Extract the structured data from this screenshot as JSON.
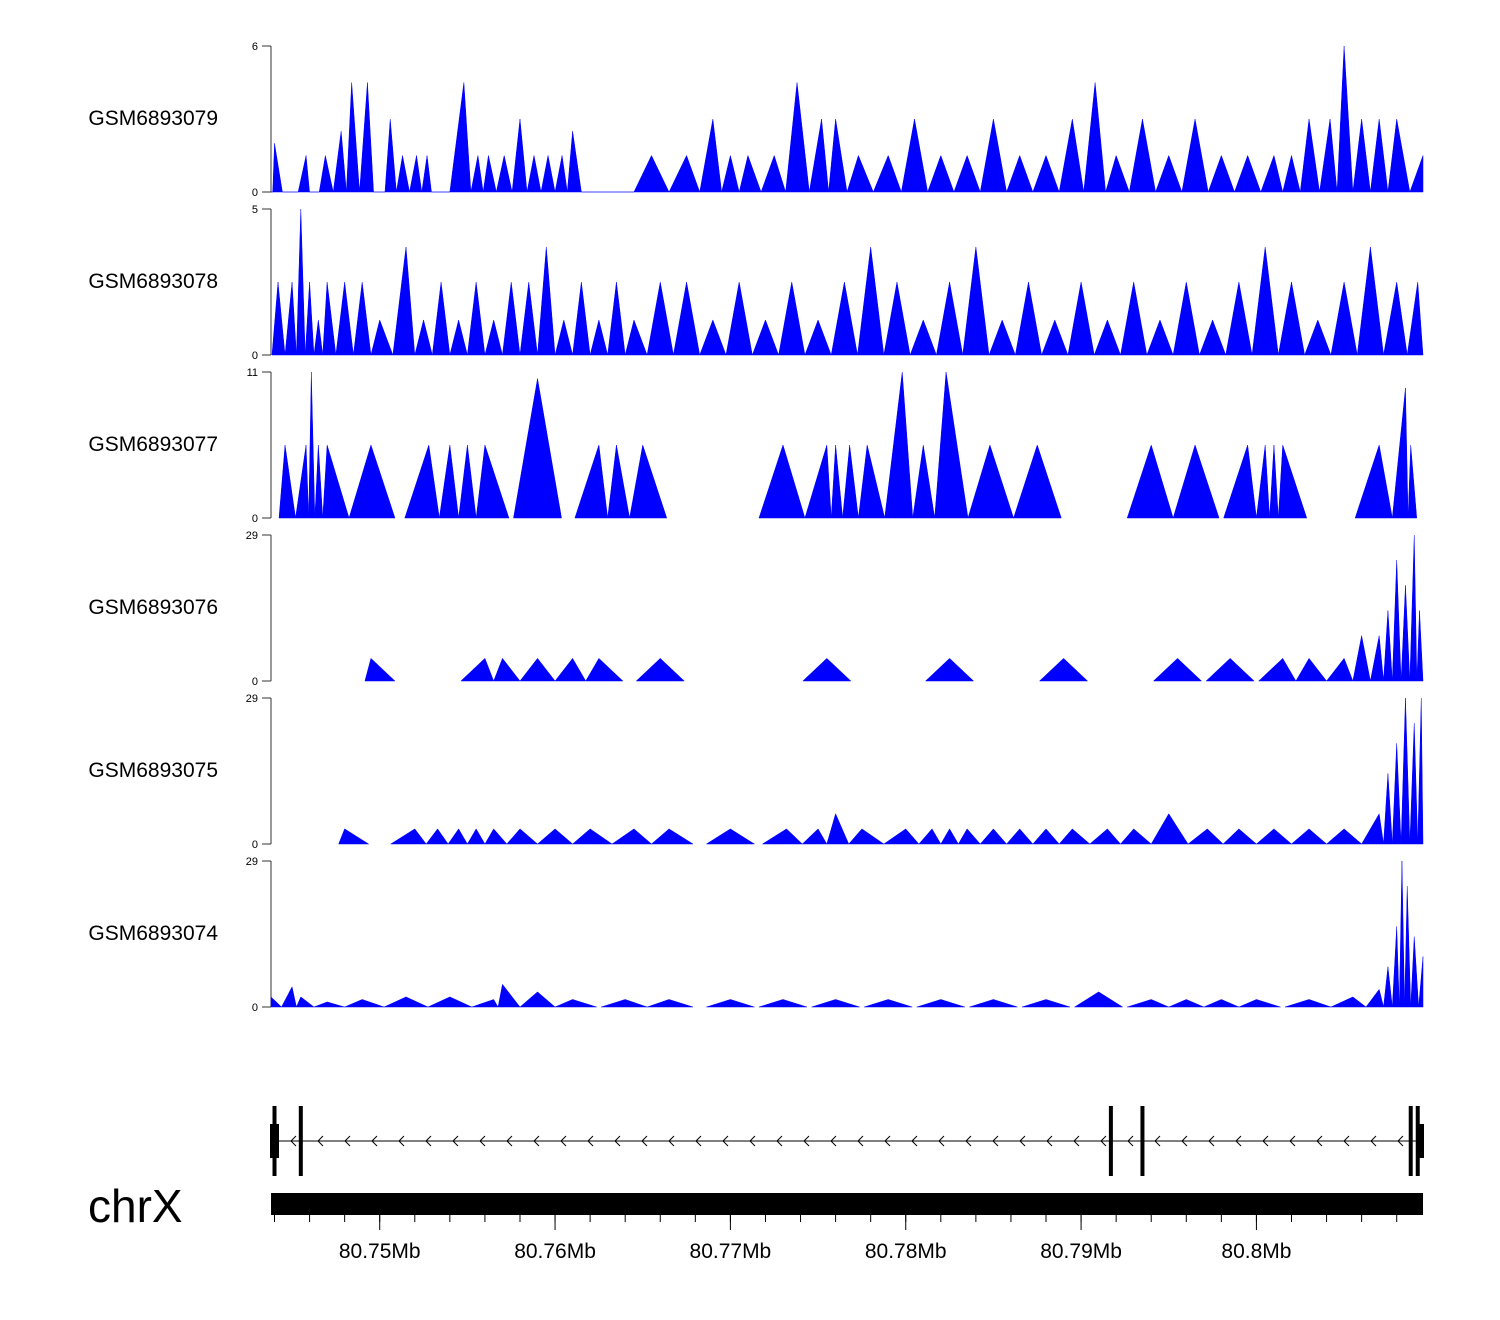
{
  "chart_data": {
    "type": "area",
    "title": "",
    "chromosome": "chrX",
    "x_unit": "Mb",
    "xlim": [
      80.7438,
      80.8095
    ],
    "x_ticks": [
      80.75,
      80.76,
      80.77,
      80.78,
      80.79,
      80.8
    ],
    "x_tick_labels": [
      "80.75Mb",
      "80.76Mb",
      "80.77Mb",
      "80.78Mb",
      "80.79Mb",
      "80.8Mb"
    ],
    "series": [
      {
        "name": "GSM6893079",
        "ylim": [
          0,
          6
        ],
        "y_ticks": [
          "0",
          "6"
        ],
        "x": [
          80.7438,
          80.744,
          80.7449,
          80.7458,
          80.7462,
          80.7469,
          80.7478,
          80.7484,
          80.7493,
          80.75,
          80.7506,
          80.7513,
          80.7521,
          80.7527,
          80.7532,
          80.7548,
          80.7556,
          80.7562,
          80.7571,
          80.758,
          80.7588,
          80.7596,
          80.7604,
          80.761,
          80.762,
          80.7635,
          80.7655,
          80.7675,
          80.769,
          80.77,
          80.771,
          80.7725,
          80.7738,
          80.7752,
          80.776,
          80.7773,
          80.779,
          80.7805,
          80.782,
          80.7835,
          80.785,
          80.7865,
          80.788,
          80.7895,
          80.7908,
          80.792,
          80.7935,
          80.795,
          80.7965,
          80.798,
          80.7995,
          80.801,
          80.802,
          80.803,
          80.8042,
          80.805,
          80.806,
          80.807,
          80.808,
          80.8095
        ],
        "y": [
          0,
          2,
          0,
          1.5,
          0,
          1.5,
          2.5,
          4.5,
          4.5,
          0,
          3,
          1.5,
          1.5,
          1.5,
          0,
          4.5,
          1.5,
          1.5,
          1.5,
          3,
          1.5,
          1.5,
          1.5,
          2.5,
          0,
          0,
          1.5,
          1.5,
          3,
          1.5,
          1.5,
          1.5,
          4.5,
          3,
          3,
          1.5,
          1.5,
          3,
          1.5,
          1.5,
          3,
          1.5,
          1.5,
          3,
          4.5,
          1.5,
          3,
          1.5,
          3,
          1.5,
          1.5,
          1.5,
          1.5,
          3,
          3,
          6,
          3,
          3,
          3,
          1.5
        ]
      },
      {
        "name": "GSM6893078",
        "ylim": [
          0,
          5
        ],
        "y_ticks": [
          "0",
          "5"
        ],
        "x": [
          80.7442,
          80.745,
          80.7455,
          80.746,
          80.7465,
          80.747,
          80.748,
          80.749,
          80.75,
          80.7515,
          80.7525,
          80.7535,
          80.7545,
          80.7555,
          80.7565,
          80.7575,
          80.7585,
          80.7595,
          80.7605,
          80.7615,
          80.7625,
          80.7635,
          80.7645,
          80.766,
          80.7675,
          80.769,
          80.7705,
          80.772,
          80.7735,
          80.775,
          80.7765,
          80.778,
          80.7795,
          80.781,
          80.7825,
          80.784,
          80.7855,
          80.787,
          80.7885,
          80.79,
          80.7915,
          80.793,
          80.7945,
          80.796,
          80.7975,
          80.799,
          80.8005,
          80.802,
          80.8035,
          80.805,
          80.8065,
          80.808,
          80.8092
        ],
        "y": [
          2.5,
          2.5,
          5,
          2.5,
          1.2,
          2.5,
          2.5,
          2.5,
          1.2,
          3.7,
          1.2,
          2.5,
          1.2,
          2.5,
          1.2,
          2.5,
          2.5,
          3.7,
          1.2,
          2.5,
          1.2,
          2.5,
          1.2,
          2.5,
          2.5,
          1.2,
          2.5,
          1.2,
          2.5,
          1.2,
          2.5,
          3.7,
          2.5,
          1.2,
          2.5,
          3.7,
          1.2,
          2.5,
          1.2,
          2.5,
          1.2,
          2.5,
          1.2,
          2.5,
          1.2,
          2.5,
          3.7,
          2.5,
          1.2,
          2.5,
          3.7,
          2.5,
          2.5
        ]
      },
      {
        "name": "GSM6893077",
        "ylim": [
          0,
          11
        ],
        "y_ticks": [
          "0",
          "11"
        ],
        "x": [
          80.7446,
          80.7458,
          80.7461,
          80.7465,
          80.747,
          80.7495,
          80.7528,
          80.754,
          80.755,
          80.756,
          80.759,
          80.7625,
          80.7635,
          80.765,
          80.773,
          80.7755,
          80.776,
          80.7768,
          80.7778,
          80.7798,
          80.781,
          80.7823,
          80.7848,
          80.7875,
          80.794,
          80.7965,
          80.7995,
          80.8005,
          80.801,
          80.8015,
          80.807,
          80.8085,
          80.8088
        ],
        "y": [
          5.5,
          5.5,
          11,
          5.5,
          5.5,
          5.5,
          5.5,
          5.5,
          5.5,
          5.5,
          10.5,
          5.5,
          5.5,
          5.5,
          5.5,
          5.5,
          5.5,
          5.5,
          5.5,
          11,
          5.5,
          11,
          5.5,
          5.5,
          5.5,
          5.5,
          5.5,
          5.5,
          5.5,
          5.5,
          5.5,
          9.8,
          5.5
        ]
      },
      {
        "name": "GSM6893076",
        "ylim": [
          0,
          29
        ],
        "y_ticks": [
          "0",
          "29"
        ],
        "x": [
          80.7495,
          80.756,
          80.757,
          80.759,
          80.761,
          80.7625,
          80.766,
          80.7755,
          80.7825,
          80.789,
          80.7955,
          80.7985,
          80.8015,
          80.803,
          80.805,
          80.806,
          80.807,
          80.8075,
          80.808,
          80.8085,
          80.809,
          80.8093
        ],
        "y": [
          4.5,
          4.5,
          4.5,
          4.5,
          4.5,
          4.5,
          4.5,
          4.5,
          4.5,
          4.5,
          4.5,
          4.5,
          4.5,
          4.5,
          4.5,
          9,
          9,
          14,
          24,
          19,
          29,
          14
        ]
      },
      {
        "name": "GSM6893075",
        "ylim": [
          0,
          29
        ],
        "y_ticks": [
          "0",
          "29"
        ],
        "x": [
          80.748,
          80.752,
          80.7533,
          80.7545,
          80.7555,
          80.7565,
          80.758,
          80.76,
          80.762,
          80.7645,
          80.7665,
          80.77,
          80.7732,
          80.775,
          80.776,
          80.7775,
          80.78,
          80.7815,
          80.7825,
          80.7835,
          80.785,
          80.7865,
          80.788,
          80.7895,
          80.7915,
          80.793,
          80.795,
          80.7972,
          80.799,
          80.801,
          80.803,
          80.805,
          80.807,
          80.8075,
          80.808,
          80.8085,
          80.809,
          80.8094
        ],
        "y": [
          3,
          3,
          3,
          3,
          3,
          3,
          3,
          3,
          3,
          3,
          3,
          3,
          3,
          3,
          6,
          3,
          3,
          3,
          3,
          3,
          3,
          3,
          3,
          3,
          3,
          3,
          6,
          3,
          3,
          3,
          3,
          3,
          6,
          14,
          20,
          29,
          24,
          29
        ]
      },
      {
        "name": "GSM6893074",
        "ylim": [
          0,
          29
        ],
        "y_ticks": [
          "0",
          "29"
        ],
        "x": [
          80.7438,
          80.745,
          80.7455,
          80.747,
          80.749,
          80.7515,
          80.754,
          80.7565,
          80.757,
          80.759,
          80.761,
          80.764,
          80.7665,
          80.77,
          80.773,
          80.776,
          80.779,
          80.782,
          80.785,
          80.788,
          80.791,
          80.794,
          80.796,
          80.798,
          80.8,
          80.803,
          80.8055,
          80.807,
          80.8075,
          80.808,
          80.8083,
          80.8086,
          80.809,
          80.8095
        ],
        "y": [
          2,
          4,
          2,
          1,
          1.5,
          2,
          2,
          1.5,
          4.5,
          3,
          1.5,
          1.5,
          1.5,
          1.5,
          1.5,
          1.5,
          1.5,
          1.5,
          1.5,
          1.5,
          3,
          1.5,
          1.5,
          1.5,
          1.5,
          1.5,
          2,
          3.5,
          8,
          16,
          29,
          24,
          14,
          10
        ]
      }
    ],
    "gene_track": {
      "strand": "-",
      "exon_boxes_mb": [
        80.744,
        80.7455,
        80.7917,
        80.7935,
        80.8088,
        80.8092
      ],
      "span_mb": [
        80.7438,
        80.8095
      ]
    }
  }
}
